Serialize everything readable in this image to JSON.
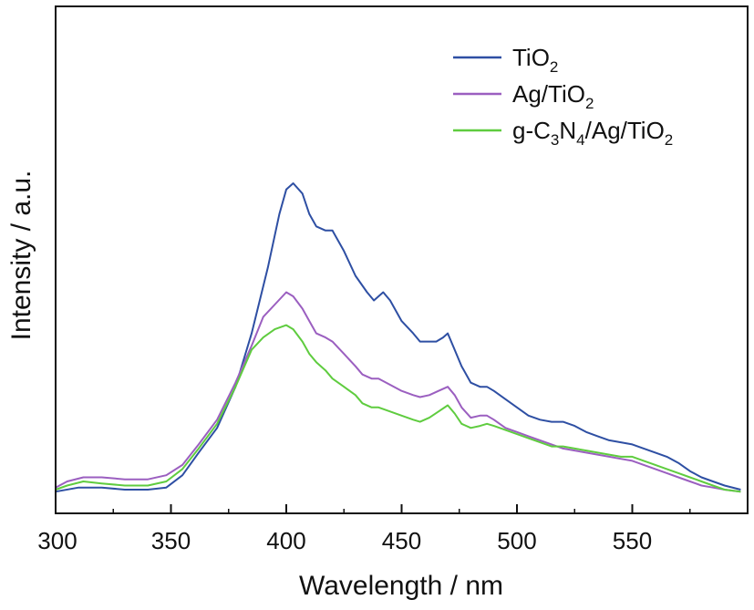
{
  "chart_data": {
    "type": "line",
    "title": "",
    "xlabel": "Wavelength / nm",
    "ylabel": "Intensity / a.u.",
    "xlim": [
      300,
      600
    ],
    "ylim": [
      0,
      100
    ],
    "x_ticks": [
      "300",
      "350",
      "400",
      "450",
      "500",
      "550"
    ],
    "y_ticks_shown": false,
    "grid": false,
    "legend_position": "top-right",
    "series": [
      {
        "name": "TiO2",
        "name_parts": [
          "TiO",
          "2"
        ],
        "color": "#2e4fa3",
        "points": [
          [
            300,
            1.5
          ],
          [
            310,
            2.5
          ],
          [
            320,
            2.5
          ],
          [
            330,
            2.0
          ],
          [
            340,
            2.0
          ],
          [
            348,
            2.5
          ],
          [
            355,
            5.5
          ],
          [
            362,
            11
          ],
          [
            370,
            17
          ],
          [
            378,
            27
          ],
          [
            385,
            40
          ],
          [
            392,
            56
          ],
          [
            397,
            69
          ],
          [
            400,
            75
          ],
          [
            403,
            76.5
          ],
          [
            407,
            74
          ],
          [
            410,
            69
          ],
          [
            413,
            66
          ],
          [
            417,
            65
          ],
          [
            420,
            65
          ],
          [
            425,
            60
          ],
          [
            430,
            54
          ],
          [
            435,
            50
          ],
          [
            438,
            48
          ],
          [
            442,
            50
          ],
          [
            445,
            48
          ],
          [
            450,
            43
          ],
          [
            455,
            40
          ],
          [
            458,
            38
          ],
          [
            462,
            38
          ],
          [
            465,
            38
          ],
          [
            468,
            39
          ],
          [
            470,
            40
          ],
          [
            473,
            36
          ],
          [
            476,
            32
          ],
          [
            480,
            28
          ],
          [
            484,
            27
          ],
          [
            487,
            27
          ],
          [
            490,
            26
          ],
          [
            495,
            24
          ],
          [
            500,
            22
          ],
          [
            505,
            20
          ],
          [
            510,
            19
          ],
          [
            515,
            18.5
          ],
          [
            520,
            18.5
          ],
          [
            525,
            17.5
          ],
          [
            530,
            16
          ],
          [
            535,
            15
          ],
          [
            540,
            14
          ],
          [
            545,
            13.5
          ],
          [
            550,
            13
          ],
          [
            555,
            12
          ],
          [
            560,
            11
          ],
          [
            565,
            10
          ],
          [
            570,
            8.5
          ],
          [
            575,
            6.5
          ],
          [
            580,
            5
          ],
          [
            585,
            4
          ],
          [
            590,
            3
          ],
          [
            597,
            2
          ]
        ]
      },
      {
        "name": "Ag/TiO2",
        "name_parts": [
          "Ag/TiO",
          "2"
        ],
        "color": "#9b5fc0",
        "points": [
          [
            300,
            2.5
          ],
          [
            305,
            4
          ],
          [
            312,
            5
          ],
          [
            320,
            5
          ],
          [
            330,
            4.5
          ],
          [
            340,
            4.5
          ],
          [
            348,
            5.5
          ],
          [
            355,
            8
          ],
          [
            362,
            13
          ],
          [
            370,
            19
          ],
          [
            378,
            28
          ],
          [
            385,
            37
          ],
          [
            390,
            44
          ],
          [
            395,
            47
          ],
          [
            400,
            50
          ],
          [
            403,
            49
          ],
          [
            407,
            46
          ],
          [
            410,
            43
          ],
          [
            413,
            40
          ],
          [
            417,
            39
          ],
          [
            420,
            38
          ],
          [
            425,
            35
          ],
          [
            430,
            32
          ],
          [
            433,
            30
          ],
          [
            437,
            29
          ],
          [
            440,
            29
          ],
          [
            445,
            27.5
          ],
          [
            450,
            26
          ],
          [
            455,
            25
          ],
          [
            458,
            24.5
          ],
          [
            462,
            25
          ],
          [
            466,
            26
          ],
          [
            470,
            27
          ],
          [
            473,
            25
          ],
          [
            476,
            22
          ],
          [
            480,
            19.5
          ],
          [
            484,
            20
          ],
          [
            487,
            20
          ],
          [
            490,
            19
          ],
          [
            495,
            17
          ],
          [
            500,
            16
          ],
          [
            505,
            15
          ],
          [
            510,
            14
          ],
          [
            515,
            13
          ],
          [
            520,
            12
          ],
          [
            525,
            11.5
          ],
          [
            530,
            11
          ],
          [
            535,
            10.5
          ],
          [
            540,
            10
          ],
          [
            545,
            9.5
          ],
          [
            550,
            9
          ],
          [
            555,
            8
          ],
          [
            560,
            7
          ],
          [
            565,
            6
          ],
          [
            570,
            5
          ],
          [
            575,
            4
          ],
          [
            580,
            3
          ],
          [
            585,
            2.5
          ],
          [
            590,
            2
          ],
          [
            597,
            1.5
          ]
        ]
      },
      {
        "name": "g-C3N4/Ag/TiO2",
        "name_parts": [
          "g-C",
          "3",
          "N",
          "4",
          "/Ag/TiO",
          "2"
        ],
        "color": "#5fcc3f",
        "points": [
          [
            300,
            2
          ],
          [
            305,
            3
          ],
          [
            312,
            4
          ],
          [
            320,
            3.5
          ],
          [
            330,
            3
          ],
          [
            340,
            3
          ],
          [
            348,
            4
          ],
          [
            355,
            7
          ],
          [
            362,
            12
          ],
          [
            370,
            18
          ],
          [
            378,
            27
          ],
          [
            385,
            36
          ],
          [
            390,
            39
          ],
          [
            395,
            41
          ],
          [
            400,
            42
          ],
          [
            403,
            41
          ],
          [
            407,
            38
          ],
          [
            410,
            35
          ],
          [
            413,
            33
          ],
          [
            417,
            31
          ],
          [
            420,
            29
          ],
          [
            425,
            27
          ],
          [
            430,
            25
          ],
          [
            433,
            23
          ],
          [
            437,
            22
          ],
          [
            440,
            22
          ],
          [
            445,
            21
          ],
          [
            450,
            20
          ],
          [
            455,
            19
          ],
          [
            458,
            18.5
          ],
          [
            462,
            19.5
          ],
          [
            466,
            21
          ],
          [
            470,
            22.5
          ],
          [
            473,
            20.5
          ],
          [
            476,
            18
          ],
          [
            480,
            17
          ],
          [
            484,
            17.5
          ],
          [
            487,
            18
          ],
          [
            490,
            17.5
          ],
          [
            495,
            16.5
          ],
          [
            500,
            15.5
          ],
          [
            505,
            14.5
          ],
          [
            510,
            13.5
          ],
          [
            515,
            12.5
          ],
          [
            520,
            12.5
          ],
          [
            525,
            12
          ],
          [
            530,
            11.5
          ],
          [
            535,
            11
          ],
          [
            540,
            10.5
          ],
          [
            545,
            10
          ],
          [
            550,
            10
          ],
          [
            555,
            9
          ],
          [
            560,
            8
          ],
          [
            565,
            7
          ],
          [
            570,
            6
          ],
          [
            575,
            5
          ],
          [
            580,
            4
          ],
          [
            585,
            3
          ],
          [
            590,
            2
          ],
          [
            597,
            1.5
          ]
        ]
      }
    ]
  }
}
